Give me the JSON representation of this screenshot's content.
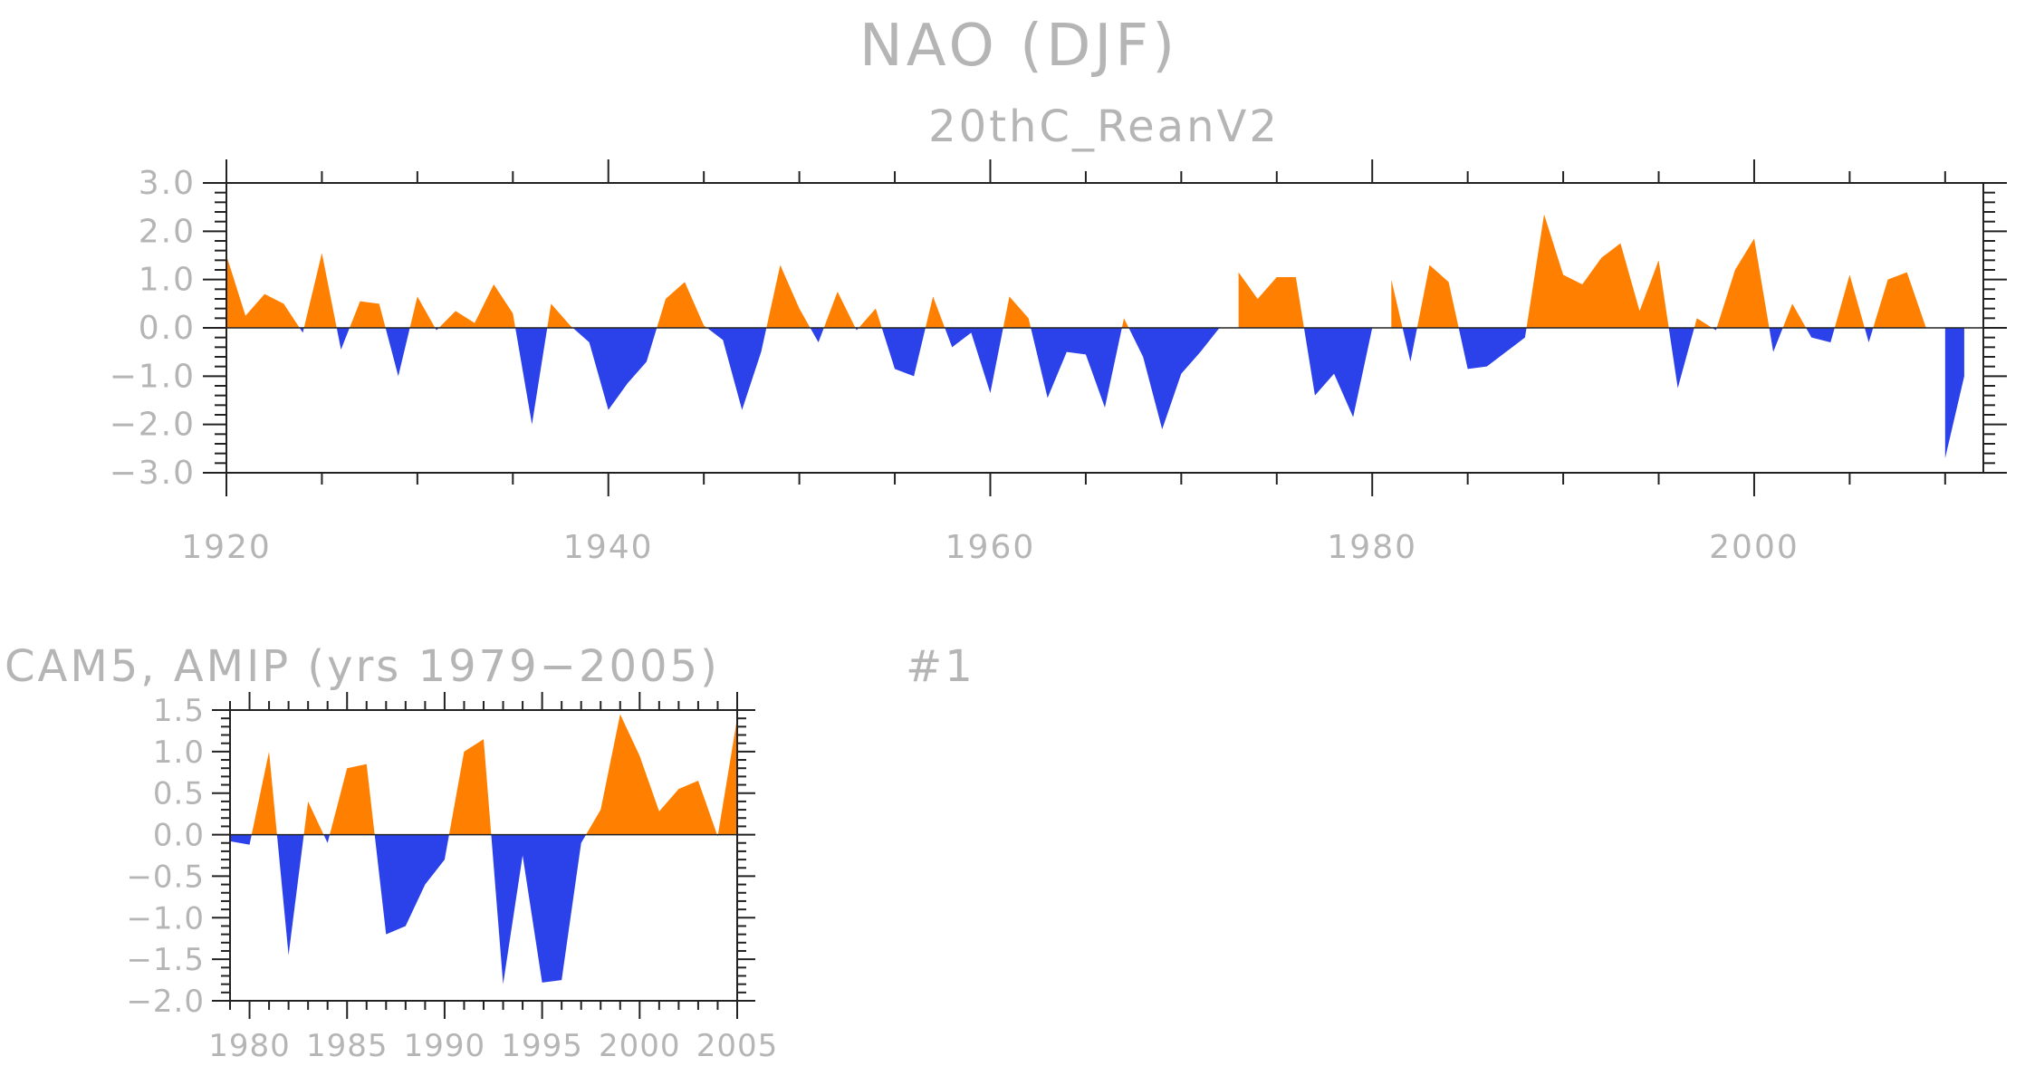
{
  "colors": {
    "positive": "#ff8000",
    "negative": "#2b41ea",
    "text": "#b5b5b5",
    "axis": "#222222"
  },
  "chart_data": [
    {
      "type": "area",
      "title": "NAO (DJF)",
      "subtitle": "20thC_ReanV2",
      "xlim": [
        1920,
        2012
      ],
      "ylim": [
        -3.0,
        3.0
      ],
      "yticks": [
        3.0,
        2.0,
        1.0,
        0.0,
        -1.0,
        -2.0,
        -3.0
      ],
      "ytick_labels": [
        "3.0",
        "2.0",
        "1.0",
        "0.0",
        "−1.0",
        "−2.0",
        "−3.0"
      ],
      "xticks": [
        1920,
        1940,
        1960,
        1980,
        2000
      ],
      "xtick_labels": [
        "1920",
        "1940",
        "1960",
        "1980",
        "2000"
      ],
      "x": [
        1920,
        1921,
        1922,
        1923,
        1924,
        1925,
        1926,
        1927,
        1928,
        1929,
        1930,
        1931,
        1932,
        1933,
        1934,
        1935,
        1936,
        1937,
        1938,
        1939,
        1940,
        1941,
        1942,
        1943,
        1944,
        1945,
        1946,
        1947,
        1948,
        1949,
        1950,
        1951,
        1952,
        1953,
        1954,
        1955,
        1956,
        1957,
        1958,
        1959,
        1960,
        1961,
        1962,
        1963,
        1964,
        1965,
        1966,
        1967,
        1968,
        1969,
        1970,
        1971,
        1972,
        1973,
        1974,
        1975,
        1976,
        1977,
        1978,
        1979,
        1980,
        1981,
        1982,
        1983,
        1984,
        1985,
        1986,
        1987,
        1988,
        1989,
        1990,
        1991,
        1992,
        1993,
        1994,
        1995,
        1996,
        1997,
        1998,
        1999,
        2000,
        2001,
        2002,
        2003,
        2004,
        2005,
        2006,
        2007,
        2008,
        2009,
        2010,
        2011
      ],
      "values": [
        1.5,
        0.25,
        0.7,
        0.5,
        -0.1,
        1.55,
        -0.45,
        0.55,
        0.5,
        -1.0,
        0.65,
        -0.05,
        0.35,
        0.1,
        0.9,
        0.3,
        -2.0,
        0.5,
        0.05,
        -0.3,
        -1.7,
        -1.15,
        -0.7,
        0.6,
        0.95,
        0.05,
        -0.25,
        -1.7,
        -0.5,
        1.3,
        0.4,
        -0.3,
        0.75,
        -0.05,
        0.4,
        -0.85,
        -1.0,
        0.65,
        -0.4,
        -0.1,
        -1.35,
        0.65,
        0.2,
        -1.45,
        -0.5,
        -0.55,
        -1.65,
        0.2,
        -0.6,
        -2.1,
        -0.95,
        -0.5,
        0.0,
        1.15,
        0.6,
        1.05,
        1.05,
        -1.4,
        -0.95,
        -1.85,
        0.0,
        1.0,
        -0.7,
        1.3,
        0.95,
        -0.85,
        -0.8,
        -0.5,
        -0.2,
        2.35,
        1.1,
        0.9,
        1.45,
        1.75,
        0.35,
        1.4,
        -1.25,
        0.2,
        -0.05,
        1.2,
        1.85,
        -0.5,
        0.5,
        -0.2,
        -0.3,
        1.1,
        -0.3,
        1.0,
        1.15,
        0.0,
        -2.7,
        -1.0
      ]
    },
    {
      "type": "area",
      "title": "CAM5, AMIP (yrs 1979−2005)",
      "label": "#1",
      "xlim": [
        1979,
        2005
      ],
      "ylim": [
        -2.0,
        1.5
      ],
      "yticks": [
        1.5,
        1.0,
        0.5,
        0.0,
        -0.5,
        -1.0,
        -1.5,
        -2.0
      ],
      "ytick_labels": [
        "1.5",
        "1.0",
        "0.5",
        "0.0",
        "−0.5",
        "−1.0",
        "−1.5",
        "−2.0"
      ],
      "xticks": [
        1980,
        1985,
        1990,
        1995,
        2000,
        2005
      ],
      "xtick_labels": [
        "1980",
        "1985",
        "1990",
        "1995",
        "2000",
        "2005"
      ],
      "x": [
        1979,
        1980,
        1981,
        1982,
        1983,
        1984,
        1985,
        1986,
        1987,
        1988,
        1989,
        1990,
        1991,
        1992,
        1993,
        1994,
        1995,
        1996,
        1997,
        1998,
        1999,
        2000,
        2001,
        2002,
        2003,
        2004,
        2005
      ],
      "values": [
        -0.08,
        -0.12,
        1.0,
        -1.45,
        0.4,
        -0.1,
        0.8,
        0.85,
        -1.2,
        -1.1,
        -0.6,
        -0.3,
        1.0,
        1.15,
        -1.8,
        -0.25,
        -1.78,
        -1.75,
        -0.1,
        0.3,
        1.45,
        0.95,
        0.28,
        0.55,
        0.65,
        -0.02,
        1.4
      ]
    }
  ]
}
